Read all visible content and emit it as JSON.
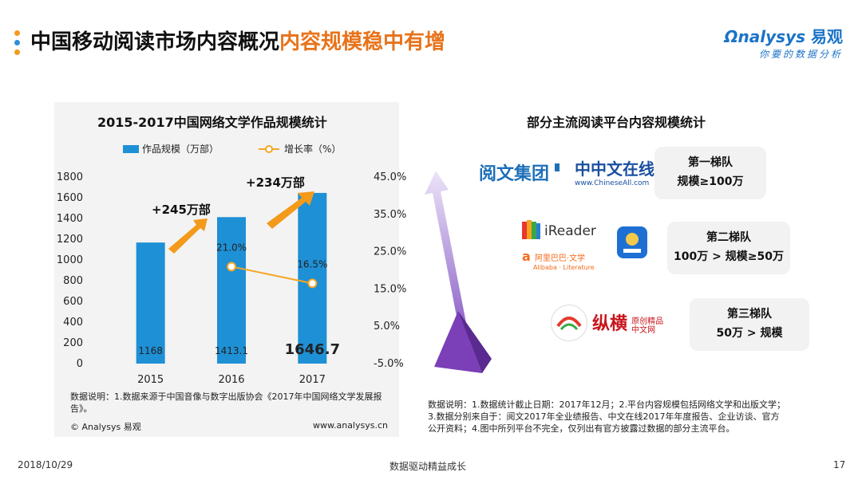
{
  "header": {
    "title_main": "中国移动阅读市场内容概况",
    "title_highlight": "内容规模稳中有增",
    "dot_colors": [
      "#f39a1b",
      "#2f8fd8",
      "#f39a1b"
    ]
  },
  "logo": {
    "name_en": "nalysys",
    "name_cn": "易观",
    "tagline": "你要的数据分析"
  },
  "left": {
    "title": "2015-2017中国网络文学作品规模统计",
    "legend_bar": "作品规模（万部）",
    "legend_line": "增长率（%）",
    "annotation_2016": "+245万部",
    "annotation_2017": "+234万部",
    "note": "数据说明：1.数据来源于中国音像与数字出版协会《2017年中国网络文学发展报告》。",
    "copyright": "© Analysys 易观",
    "website": "www.analysys.cn"
  },
  "chart_data": {
    "type": "bar",
    "categories": [
      "2015",
      "2016",
      "2017"
    ],
    "series": [
      {
        "name": "作品规模（万部）",
        "type": "bar",
        "values": [
          1168,
          1413.1,
          1646.7
        ],
        "color": "#1e90d6"
      },
      {
        "name": "增长率（%）",
        "type": "line",
        "values": [
          null,
          21.0,
          16.5
        ],
        "color": "#f5a623"
      }
    ],
    "value_labels": [
      "1168",
      "1413.1",
      "1646.7"
    ],
    "rate_labels": [
      "",
      "21.0%",
      "16.5%"
    ],
    "y_left": {
      "range": [
        0,
        1800
      ],
      "ticks": [
        "0",
        "200",
        "400",
        "600",
        "800",
        "1000",
        "1200",
        "1400",
        "1600",
        "1800"
      ]
    },
    "y_right": {
      "range": [
        -5.0,
        45.0
      ],
      "ticks": [
        "-5.0%",
        "5.0%",
        "15.0%",
        "25.0%",
        "35.0%",
        "45.0%"
      ]
    },
    "grid": false,
    "legend_position": "top"
  },
  "right": {
    "title": "部分主流阅读平台内容规模统计",
    "tiers": [
      {
        "name": "第一梯队",
        "scale": "规模≥100万"
      },
      {
        "name": "第二梯队",
        "scale": "100万 > 规模≥50万"
      },
      {
        "name": "第三梯队",
        "scale": "50万 > 规模"
      }
    ],
    "brands": {
      "yuewen": "阅文集团",
      "chineseall": "中文在线",
      "chineseall_url": "www.ChineseAll.com",
      "ireader": "iReader",
      "alibaba": "阿里巴巴·文学",
      "alibaba_en": "Alibaba · Literature",
      "zongheng": "纵横",
      "zongheng_sub": "原创精品中文网"
    },
    "note_lines": [
      "数据说明：1.数据统计截止日期：2017年12月；2.平台内容规模包括网络文学和出版文学；",
      "3.数据分别来自于：阅文2017年全业绩报告、中文在线2017年年度报告、企业访谈、官方",
      "公开资料；4.图中所列平台不完全，仅列出有官方披露过数据的部分主流平台。"
    ]
  },
  "footer": {
    "date": "2018/10/29",
    "slogan": "数据驱动精益成长",
    "page": "17"
  }
}
